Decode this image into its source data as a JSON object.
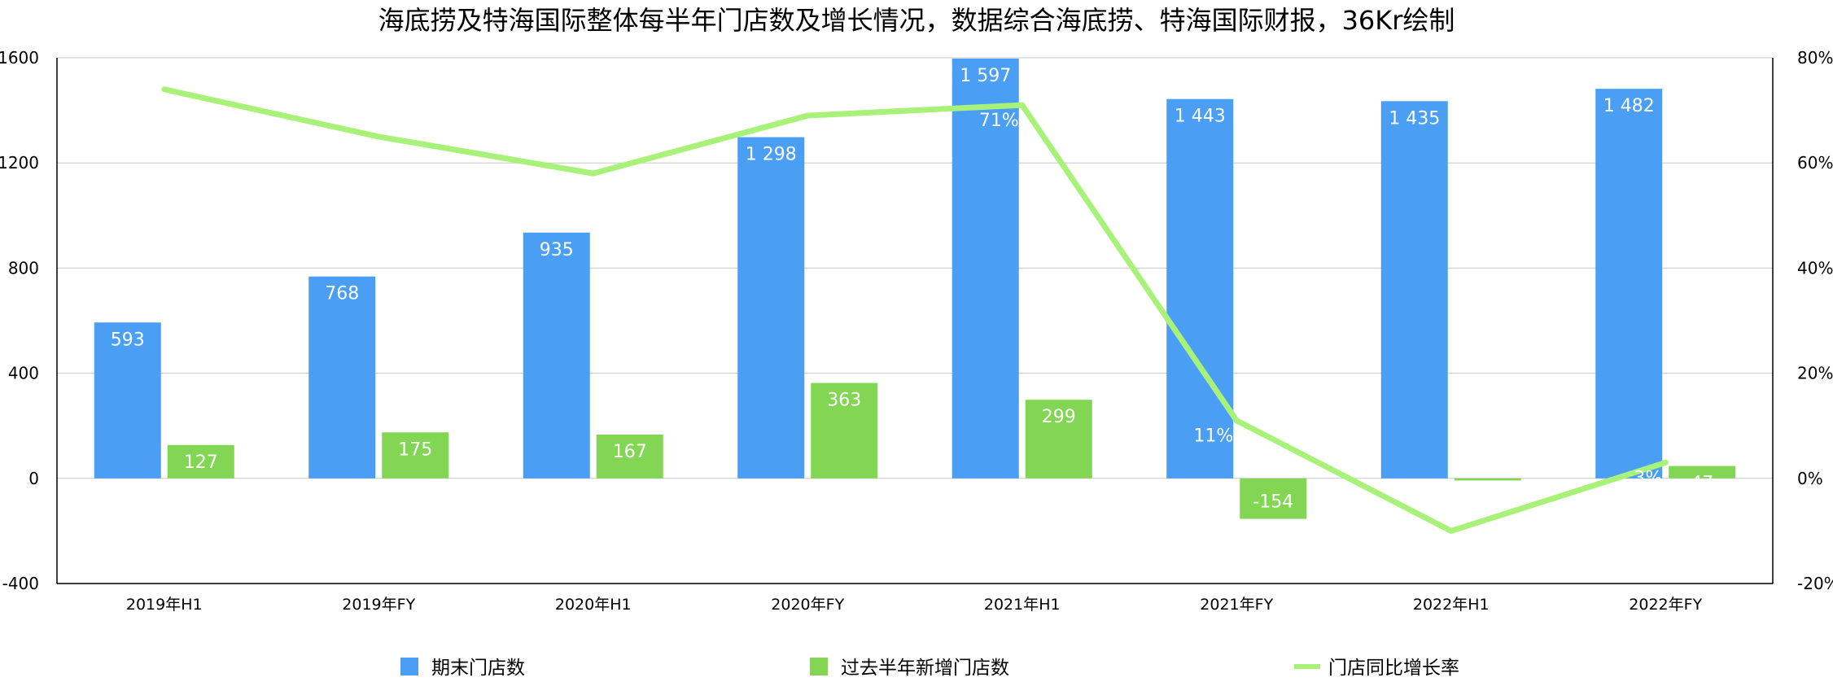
{
  "chart_data": {
    "type": "bar",
    "title": "海底捞及特海国际整体每半年门店数及增长情况，数据综合海底捞、特海国际财报，36Kr绘制",
    "categories": [
      "2019年H1",
      "2019年FY",
      "2020年H1",
      "2020年FY",
      "2021年H1",
      "2021年FY",
      "2022年H1",
      "2022年FY"
    ],
    "series": [
      {
        "name": "期末门店数",
        "kind": "bar",
        "axis": "left",
        "color": "#4A9FF5",
        "values": [
          593,
          768,
          935,
          1298,
          1597,
          1443,
          1435,
          1482
        ],
        "labels": [
          "593",
          "768",
          "935",
          "1 298",
          "1 597",
          "1 443",
          "1 435",
          "1 482"
        ]
      },
      {
        "name": "过去半年新增门店数",
        "kind": "bar",
        "axis": "left",
        "color": "#82D654",
        "values": [
          127,
          175,
          167,
          363,
          299,
          -154,
          -8,
          47
        ],
        "labels": [
          "127",
          "175",
          "167",
          "363",
          "299",
          "-154",
          "",
          "47"
        ]
      },
      {
        "name": "门店同比增长率",
        "kind": "line",
        "axis": "right",
        "color": "#A8F27A",
        "values": [
          74,
          65,
          58,
          69,
          71,
          11,
          -10,
          3
        ],
        "labels": [
          "",
          "",
          "",
          "",
          "71%",
          "11%",
          "",
          "3%"
        ]
      }
    ],
    "y_left": {
      "min": -400,
      "max": 1600,
      "ticks": [
        -400,
        0,
        400,
        800,
        1200,
        1600
      ],
      "tick_labels": [
        "-400",
        "0",
        "400",
        "800",
        "1200",
        "1600"
      ]
    },
    "y_right": {
      "min": -20,
      "max": 80,
      "ticks": [
        -20,
        0,
        20,
        40,
        60,
        80
      ],
      "tick_labels": [
        "-20%",
        "0%",
        "20%",
        "40%",
        "60%",
        "80%"
      ]
    },
    "grid": true,
    "legend_position": "bottom"
  }
}
